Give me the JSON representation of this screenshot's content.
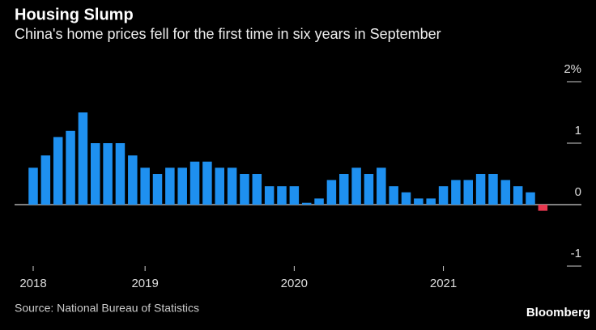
{
  "chart_data": {
    "type": "bar",
    "title": "Housing Slump",
    "subtitle": "China's home prices fell for the first time in six years in September",
    "source": "Source: National Bureau of Statistics",
    "brand": "Bloomberg",
    "categories": [
      "2018",
      null,
      null,
      null,
      null,
      null,
      null,
      null,
      null,
      "2019",
      null,
      null,
      null,
      null,
      null,
      null,
      null,
      null,
      null,
      null,
      null,
      "2020",
      null,
      null,
      null,
      null,
      null,
      null,
      null,
      null,
      null,
      null,
      null,
      "2021",
      null,
      null,
      null,
      null,
      null,
      null,
      null,
      null
    ],
    "values": [
      0.6,
      0.8,
      1.1,
      1.2,
      1.5,
      1.0,
      1.0,
      1.0,
      0.8,
      0.6,
      0.5,
      0.6,
      0.6,
      0.7,
      0.7,
      0.6,
      0.6,
      0.5,
      0.5,
      0.3,
      0.3,
      0.3,
      0.03,
      0.1,
      0.4,
      0.5,
      0.6,
      0.5,
      0.6,
      0.3,
      0.2,
      0.1,
      0.1,
      0.3,
      0.4,
      0.4,
      0.5,
      0.5,
      0.4,
      0.3,
      0.2,
      -0.1
    ],
    "color": "#1e90f0",
    "negative_color": "#e8384f",
    "ylim": [
      -1,
      2
    ],
    "yticks": [
      {
        "value": 2,
        "label": "2%"
      },
      1,
      0,
      -1
    ]
  }
}
